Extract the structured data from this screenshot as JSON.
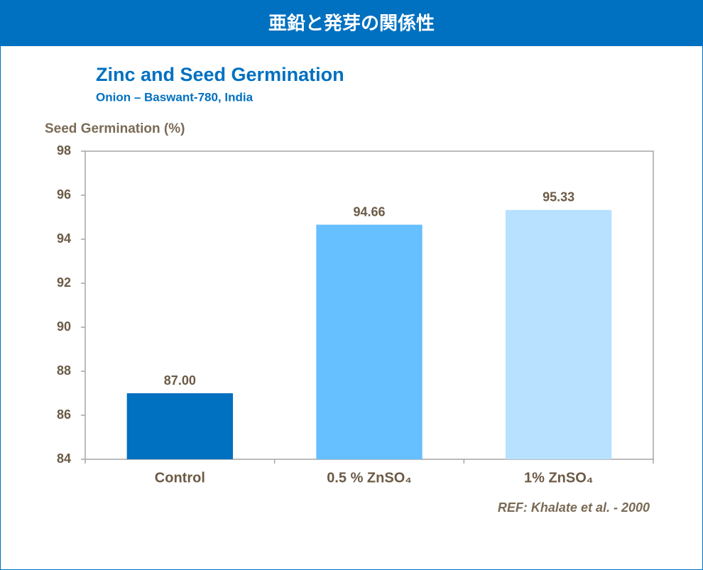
{
  "header": {
    "title": "亜鉛と発芽の関係性"
  },
  "chart_data": {
    "type": "bar",
    "title": "Zinc and Seed Germination",
    "subtitle": "Onion – Baswant-780, India",
    "y_label": "Seed Germination (%)",
    "annotation": "REF: Khalate et al. -  2000",
    "categories": [
      "Control",
      "0.5 % ZnSO₄",
      "1% ZnSO₄"
    ],
    "values": [
      87.0,
      94.66,
      95.33
    ],
    "value_labels": [
      "87.00",
      "94.66",
      "95.33"
    ],
    "colors": [
      "#0070c0",
      "#66bfff",
      "#b8e0ff"
    ],
    "ylim": [
      84,
      98
    ],
    "yticks": [
      84,
      86,
      88,
      90,
      92,
      94,
      96,
      98
    ],
    "grid": false
  }
}
